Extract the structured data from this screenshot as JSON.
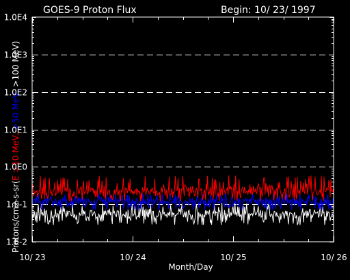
{
  "chart_data": {
    "type": "line",
    "title": "GOES-9 Proton Flux",
    "subtitle": "Begin: 10/ 23/ 1997",
    "xlabel": "Month/Day",
    "ylabel": {
      "prefix": "Protons/cm2-s-sr(",
      "part1": "E >10 MeV,",
      "part2": " >50 MeV,",
      "part3": " >100 MeV)"
    },
    "y_scale": "log",
    "ylim": [
      0.01,
      10000
    ],
    "y_ticks": [
      {
        "value": 10000,
        "label": "1.0E4"
      },
      {
        "value": 1000,
        "label": "1.0E3"
      },
      {
        "value": 100,
        "label": "1.0E2"
      },
      {
        "value": 10,
        "label": "1.0E1"
      },
      {
        "value": 1,
        "label": "1.0E0"
      },
      {
        "value": 0.1,
        "label": "1.E-1"
      },
      {
        "value": 0.01,
        "label": "1.E-2"
      }
    ],
    "x_ticks": [
      "10/ 23",
      "10/ 24",
      "10/ 25",
      "10/ 26"
    ],
    "x_range_days": [
      0,
      3
    ],
    "grid": "dashed horizontal at decades",
    "series": [
      {
        "name": "E >10 MeV",
        "color": "#ff0000",
        "typical": 0.22,
        "min": 0.12,
        "max": 0.6
      },
      {
        "name": ">50 MeV",
        "color": "#0000ff",
        "typical": 0.12,
        "min": 0.07,
        "max": 0.2
      },
      {
        "name": ">100 MeV",
        "color": "#ffffff",
        "typical": 0.055,
        "min": 0.028,
        "max": 0.11
      }
    ]
  },
  "colors": {
    "background": "#000000",
    "axes": "#ffffff",
    "grid": "#ffffff"
  }
}
